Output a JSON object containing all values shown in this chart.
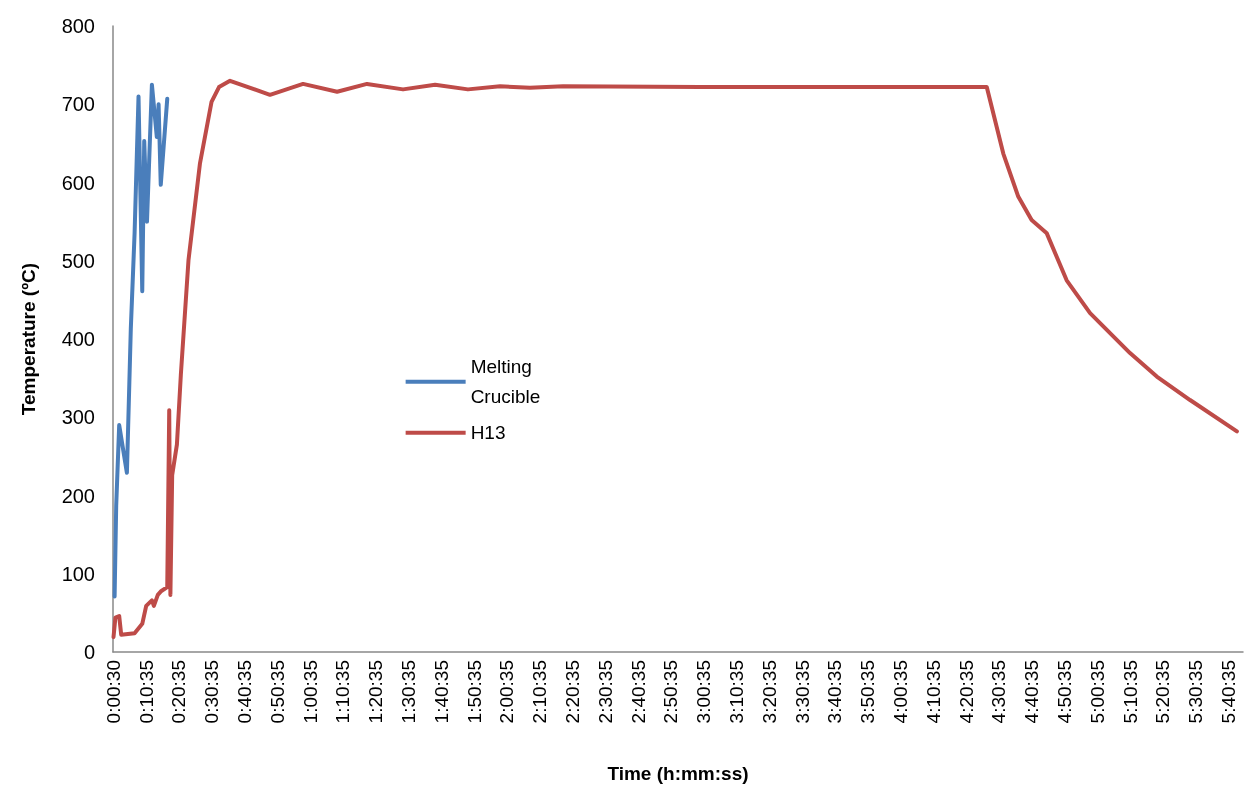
{
  "chart_data": {
    "type": "line",
    "xlabel": "Time (h:mm:ss)",
    "ylabel": "Temperature (ºC)",
    "xlim": [
      0.00833,
      5.75
    ],
    "xticks": [
      {
        "value": 0.00833,
        "label": "0:00:30"
      },
      {
        "value": 0.17639,
        "label": "0:10:35"
      },
      {
        "value": 0.34306,
        "label": "0:20:35"
      },
      {
        "value": 0.50972,
        "label": "0:30:35"
      },
      {
        "value": 0.67639,
        "label": "0:40:35"
      },
      {
        "value": 0.84306,
        "label": "0:50:35"
      },
      {
        "value": 1.00972,
        "label": "1:00:35"
      },
      {
        "value": 1.17639,
        "label": "1:10:35"
      },
      {
        "value": 1.34306,
        "label": "1:20:35"
      },
      {
        "value": 1.50972,
        "label": "1:30:35"
      },
      {
        "value": 1.67639,
        "label": "1:40:35"
      },
      {
        "value": 1.84306,
        "label": "1:50:35"
      },
      {
        "value": 2.00972,
        "label": "2:00:35"
      },
      {
        "value": 2.17639,
        "label": "2:10:35"
      },
      {
        "value": 2.34306,
        "label": "2:20:35"
      },
      {
        "value": 2.50972,
        "label": "2:30:35"
      },
      {
        "value": 2.67639,
        "label": "2:40:35"
      },
      {
        "value": 2.84306,
        "label": "2:50:35"
      },
      {
        "value": 3.00972,
        "label": "3:00:35"
      },
      {
        "value": 3.17639,
        "label": "3:10:35"
      },
      {
        "value": 3.34306,
        "label": "3:20:35"
      },
      {
        "value": 3.50972,
        "label": "3:30:35"
      },
      {
        "value": 3.67639,
        "label": "3:40:35"
      },
      {
        "value": 3.84306,
        "label": "3:50:35"
      },
      {
        "value": 4.00972,
        "label": "4:00:35"
      },
      {
        "value": 4.17639,
        "label": "4:10:35"
      },
      {
        "value": 4.34306,
        "label": "4:20:35"
      },
      {
        "value": 4.50972,
        "label": "4:30:35"
      },
      {
        "value": 4.67639,
        "label": "4:40:35"
      },
      {
        "value": 4.84306,
        "label": "4:50:35"
      },
      {
        "value": 5.00972,
        "label": "5:00:35"
      },
      {
        "value": 5.17639,
        "label": "5:10:35"
      },
      {
        "value": 5.34306,
        "label": "5:20:35"
      },
      {
        "value": 5.50972,
        "label": "5:30:35"
      },
      {
        "value": 5.67639,
        "label": "5:40:35"
      }
    ],
    "ylim": [
      0,
      800
    ],
    "yticks": [
      0,
      100,
      200,
      300,
      400,
      500,
      600,
      700,
      800
    ],
    "grid": false,
    "legend": "center left",
    "marker": "none",
    "line_style": "solid",
    "series": [
      {
        "name": "Melting Crucible",
        "color": "#4a7ebb",
        "x": [
          0.0165,
          0.0246,
          0.0398,
          0.079,
          0.0988,
          0.118,
          0.138,
          0.157,
          0.167,
          0.181,
          0.206,
          0.231,
          0.24,
          0.251,
          0.284
        ],
        "values": [
          71,
          187,
          290,
          229,
          413,
          535,
          710,
          461,
          653,
          550,
          725,
          658,
          700,
          597,
          707
        ]
      },
      {
        "name": "H13",
        "color": "#be4b48",
        "x": [
          0.0109,
          0.0205,
          0.0398,
          0.05,
          0.118,
          0.157,
          0.177,
          0.206,
          0.216,
          0.236,
          0.254,
          0.284,
          0.294,
          0.3,
          0.309,
          0.333,
          0.353,
          0.392,
          0.45,
          0.509,
          0.547,
          0.603,
          0.806,
          0.974,
          1.147,
          1.299,
          1.482,
          1.645,
          1.812,
          1.975,
          2.127,
          2.295,
          2.991,
          3.753,
          4.448,
          4.532,
          4.608,
          4.676,
          4.753,
          4.854,
          4.973,
          5.176,
          5.312,
          5.481,
          5.719
        ],
        "values": [
          19,
          44,
          46,
          22,
          24,
          36,
          59,
          66,
          59,
          73,
          78,
          83,
          309,
          73,
          226,
          265,
          354,
          501,
          624,
          703,
          722,
          730,
          712,
          726,
          716,
          726,
          719,
          725,
          719,
          723,
          721,
          723,
          722,
          722,
          722,
          637,
          582,
          552,
          535,
          475,
          433,
          382,
          352,
          322,
          282
        ]
      }
    ]
  }
}
